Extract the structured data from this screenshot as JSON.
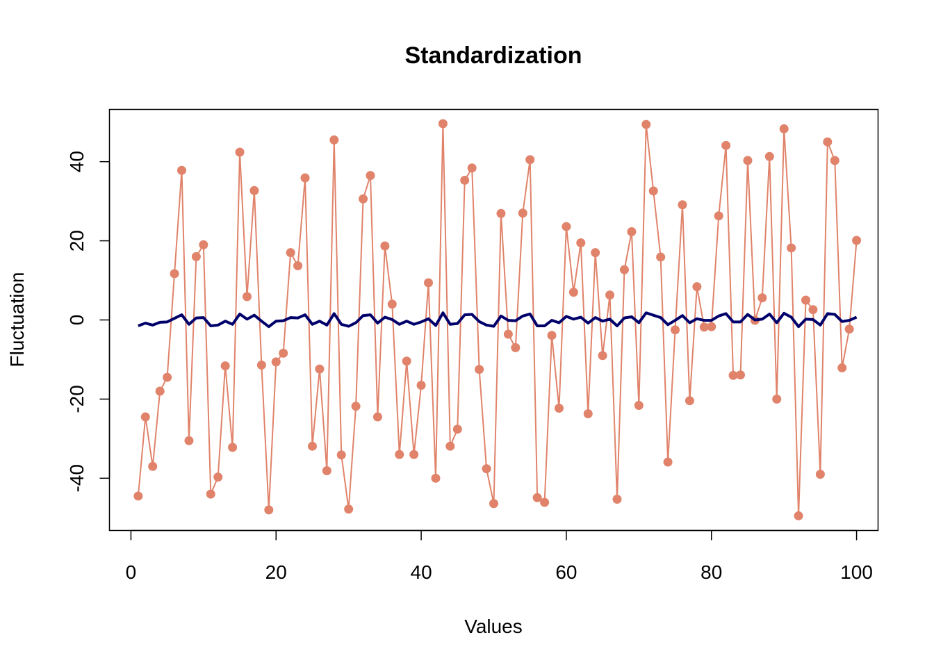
{
  "chart_data": {
    "type": "line",
    "title": "Standardization",
    "xlabel": "Values",
    "ylabel": "Fluctuation",
    "xlim": [
      -2.96,
      102.96
    ],
    "ylim": [
      -53.2,
      53.2
    ],
    "x_ticks": [
      0,
      20,
      40,
      60,
      80,
      100
    ],
    "y_ticks": [
      -40,
      -20,
      0,
      20,
      40
    ],
    "x_tick_labels": [
      "0",
      "20",
      "40",
      "60",
      "80",
      "100"
    ],
    "y_tick_labels": [
      "-40",
      "-20",
      "0",
      "20",
      "40"
    ],
    "grid": false,
    "legend": "none",
    "x": [
      1,
      2,
      3,
      4,
      5,
      6,
      7,
      8,
      9,
      10,
      11,
      12,
      13,
      14,
      15,
      16,
      17,
      18,
      19,
      20,
      21,
      22,
      23,
      24,
      25,
      26,
      27,
      28,
      29,
      30,
      31,
      32,
      33,
      34,
      35,
      36,
      37,
      38,
      39,
      40,
      41,
      42,
      43,
      44,
      45,
      46,
      47,
      48,
      49,
      50,
      51,
      52,
      53,
      54,
      55,
      56,
      57,
      58,
      59,
      60,
      61,
      62,
      63,
      64,
      65,
      66,
      67,
      68,
      69,
      70,
      71,
      72,
      73,
      74,
      75,
      76,
      77,
      78,
      79,
      80,
      81,
      82,
      83,
      84,
      85,
      86,
      87,
      88,
      89,
      90,
      91,
      92,
      93,
      94,
      95,
      96,
      97,
      98,
      99,
      100
    ],
    "series": [
      {
        "color": "#E0836A",
        "style": "line-points",
        "values": [
          -44.5,
          -24.5,
          -37,
          -18,
          -14.5,
          11.7,
          37.8,
          -30.5,
          16,
          19,
          -44,
          -39.7,
          -11.6,
          -32.2,
          42.4,
          5.9,
          32.7,
          -11.4,
          -48,
          -10.6,
          -8.4,
          17,
          13.7,
          35.9,
          -31.9,
          -12.4,
          -38.1,
          45.5,
          -34.1,
          -47.8,
          -21.8,
          30.6,
          36.5,
          -24.5,
          18.7,
          4,
          -34,
          -10.4,
          -34,
          -16.5,
          9.4,
          -40,
          49.6,
          -31.9,
          -27.6,
          35.3,
          38.4,
          -12.5,
          -37.6,
          -46.4,
          26.9,
          -3.6,
          -7,
          27,
          40.5,
          -44.9,
          -46.1,
          -3.9,
          -22.3,
          23.6,
          7,
          19.5,
          -23.7,
          17,
          -9,
          6.3,
          -45.3,
          12.7,
          22.3,
          -21.6,
          49.4,
          32.6,
          15.9,
          -35.9,
          -2.5,
          29.1,
          -20.4,
          8.4,
          -1.8,
          -1.7,
          26.3,
          44.1,
          -14,
          -13.9,
          40.3,
          -0.1,
          5.6,
          41.3,
          -20,
          48.3,
          18.2,
          -49.5,
          5,
          2.6,
          -39,
          45,
          40.3,
          -12.1,
          -2.3,
          20.1
        ]
      },
      {
        "color": "#00006B",
        "style": "line",
        "values": [
          -1.5,
          -0.8,
          -1.3,
          -0.6,
          -0.5,
          0.4,
          1.3,
          -1.1,
          0.5,
          0.6,
          -1.5,
          -1.3,
          -0.3,
          -1.1,
          1.5,
          0.2,
          1.2,
          -0.3,
          -1.7,
          -0.3,
          -0.2,
          0.6,
          0.5,
          1.3,
          -1.1,
          -0.3,
          -1.3,
          1.6,
          -1.1,
          -1.6,
          -0.7,
          1.1,
          1.3,
          -0.8,
          0.7,
          0.1,
          -1.1,
          -0.3,
          -1.1,
          -0.5,
          0.3,
          -1.4,
          1.8,
          -1.1,
          -0.9,
          1.3,
          1.4,
          -0.4,
          -1.3,
          -1.6,
          1,
          -0.1,
          -0.2,
          1,
          1.5,
          -1.5,
          -1.5,
          -0.1,
          -0.7,
          0.9,
          0.2,
          0.7,
          -0.8,
          0.6,
          -0.3,
          0.2,
          -1.5,
          0.5,
          0.8,
          -0.7,
          1.8,
          1.2,
          0.6,
          -1.2,
          -0.1,
          1.1,
          -0.7,
          0.3,
          -0.1,
          -0.1,
          1,
          1.6,
          -0.5,
          -0.5,
          1.4,
          0,
          0.2,
          1.5,
          -0.7,
          1.7,
          0.7,
          -1.7,
          0.2,
          0.1,
          -1.3,
          1.6,
          1.4,
          -0.4,
          -0.1,
          0.7
        ]
      }
    ]
  }
}
